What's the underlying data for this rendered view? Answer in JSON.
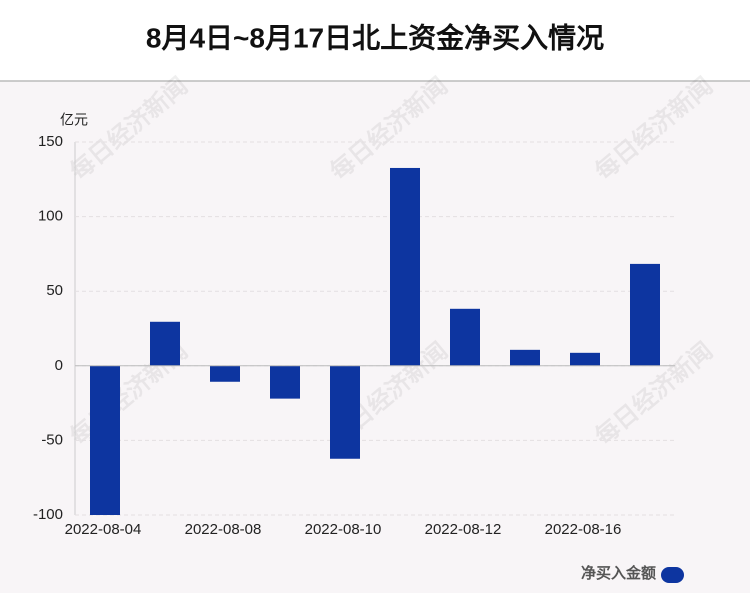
{
  "chart_data": {
    "type": "bar",
    "title": "8月4日~8月17日北上资金净买入情况",
    "y_unit": "亿元",
    "watermark": "每日经济新闻",
    "categories": [
      "2022-08-04",
      null,
      "2022-08-08",
      null,
      "2022-08-10",
      null,
      "2022-08-12",
      null,
      "2022-08-16",
      null
    ],
    "series": [
      {
        "name": "净买入金额",
        "color": "#0d35a0",
        "values": [
          -100,
          29.5,
          -10.7,
          -22,
          -62.3,
          132.6,
          38.2,
          10.7,
          8.7,
          68.3
        ]
      }
    ],
    "ylim": [
      -100,
      150
    ],
    "yticks": [
      -100,
      -50,
      0,
      50,
      100,
      150
    ],
    "grid": true
  }
}
